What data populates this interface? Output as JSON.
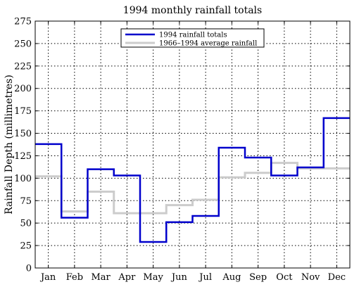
{
  "chart_data": {
    "type": "line",
    "title": "1994 monthly rainfall totals",
    "xlabel": "",
    "ylabel": "Rainfall Depth (millimetres)",
    "categories": [
      "Jan",
      "Feb",
      "Mar",
      "Apr",
      "May",
      "Jun",
      "Jul",
      "Aug",
      "Sep",
      "Oct",
      "Nov",
      "Dec"
    ],
    "ylim": [
      0,
      275
    ],
    "yticks": [
      0,
      25,
      50,
      75,
      100,
      125,
      150,
      175,
      200,
      225,
      250,
      275
    ],
    "grid": true,
    "step": true,
    "legend_position": "top-center",
    "series": [
      {
        "name": "1994 rainfall totals",
        "color": "#0000cc",
        "values": [
          138,
          56,
          110,
          103,
          29,
          51,
          58,
          134,
          123,
          103,
          112,
          167
        ]
      },
      {
        "name": "1966–1994 average rainfall",
        "color": "#cccccc",
        "values": [
          102,
          63,
          85,
          61,
          61,
          70,
          76,
          101,
          106,
          117,
          111,
          111
        ]
      }
    ]
  }
}
